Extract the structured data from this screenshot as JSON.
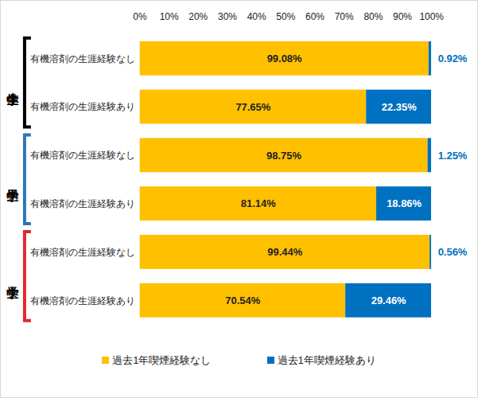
{
  "chart_data": {
    "type": "bar",
    "orientation": "horizontal",
    "stacked": true,
    "data_labels": true,
    "legend": "bottom",
    "xlim": [
      0,
      100
    ],
    "xticks": [
      {
        "value": 0,
        "label": "0%"
      },
      {
        "value": 10,
        "label": "10%"
      },
      {
        "value": 20,
        "label": "20%"
      },
      {
        "value": 30,
        "label": "30%"
      },
      {
        "value": 40,
        "label": "40%"
      },
      {
        "value": 50,
        "label": "50%"
      },
      {
        "value": 60,
        "label": "60%"
      },
      {
        "value": 70,
        "label": "70%"
      },
      {
        "value": 80,
        "label": "80%"
      },
      {
        "value": 90,
        "label": "90%"
      },
      {
        "value": 100,
        "label": "100%"
      }
    ],
    "groups": [
      {
        "name": "中学生全体",
        "color": "#000000",
        "categories": [
          "有機溶剤の生涯経験なし",
          "有機溶剤の生涯経験あり"
        ]
      },
      {
        "name": "男子中学生",
        "color": "#2e75b6",
        "categories": [
          "有機溶剤の生涯経験なし",
          "有機溶剤の生涯経験あり"
        ]
      },
      {
        "name": "女子中学生",
        "color": "#e0282e",
        "categories": [
          "有機溶剤の生涯経験なし",
          "有機溶剤の生涯経験あり"
        ]
      }
    ],
    "series": [
      {
        "name": "過去1年喫煙経験なし",
        "color": "#ffc000",
        "values": [
          99.08,
          77.65,
          98.75,
          81.14,
          99.44,
          70.54
        ],
        "value_labels": [
          "99.08%",
          "77.65%",
          "98.75%",
          "81.14%",
          "99.44%",
          "70.54%"
        ]
      },
      {
        "name": "過去1年喫煙経験あり",
        "color": "#0070c0",
        "values": [
          0.92,
          22.35,
          1.25,
          18.86,
          0.56,
          29.46
        ],
        "value_labels": [
          "0.92%",
          "22.35%",
          "1.25%",
          "18.86%",
          "0.56%",
          "29.46%"
        ]
      }
    ]
  }
}
